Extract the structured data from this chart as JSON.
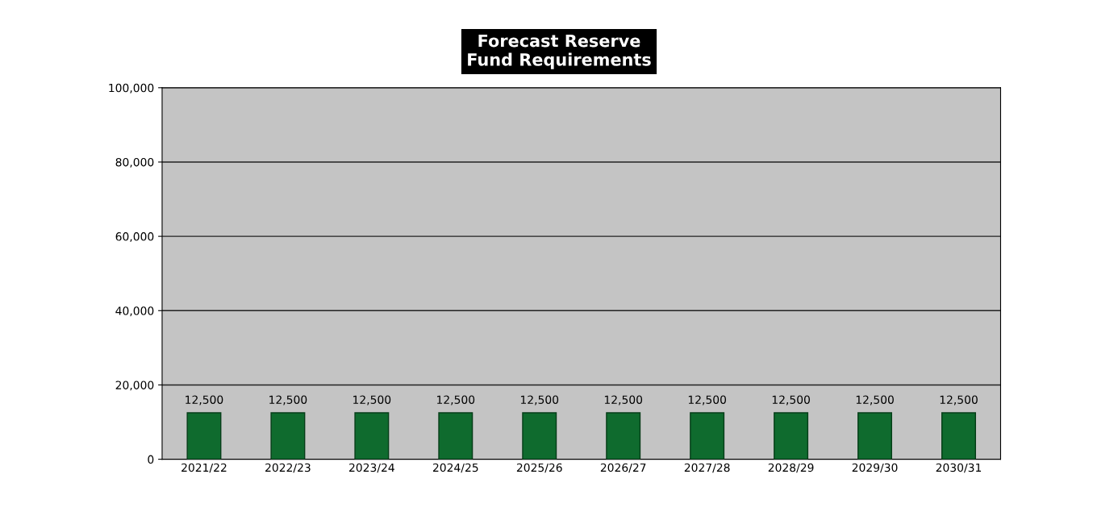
{
  "chart_data": {
    "type": "bar",
    "title": "Forecast Reserve\nFund Requirements",
    "categories": [
      "2021/22",
      "2022/23",
      "2023/24",
      "2024/25",
      "2025/26",
      "2026/27",
      "2027/28",
      "2028/29",
      "2029/30",
      "2030/31"
    ],
    "values": [
      12500,
      12500,
      12500,
      12500,
      12500,
      12500,
      12500,
      12500,
      12500,
      12500
    ],
    "value_labels": [
      "12,500",
      "12,500",
      "12,500",
      "12,500",
      "12,500",
      "12,500",
      "12,500",
      "12,500",
      "12,500",
      "12,500"
    ],
    "color": "#0f6b2e",
    "ylim": [
      0,
      100000
    ],
    "yticks": [
      {
        "value": 0,
        "label": "0"
      },
      {
        "value": 20000,
        "label": "20,000"
      },
      {
        "value": 40000,
        "label": "40,000"
      },
      {
        "value": 60000,
        "label": "60,000"
      },
      {
        "value": 80000,
        "label": "80,000"
      },
      {
        "value": 100000,
        "label": "100,000"
      }
    ],
    "grid": "y"
  }
}
